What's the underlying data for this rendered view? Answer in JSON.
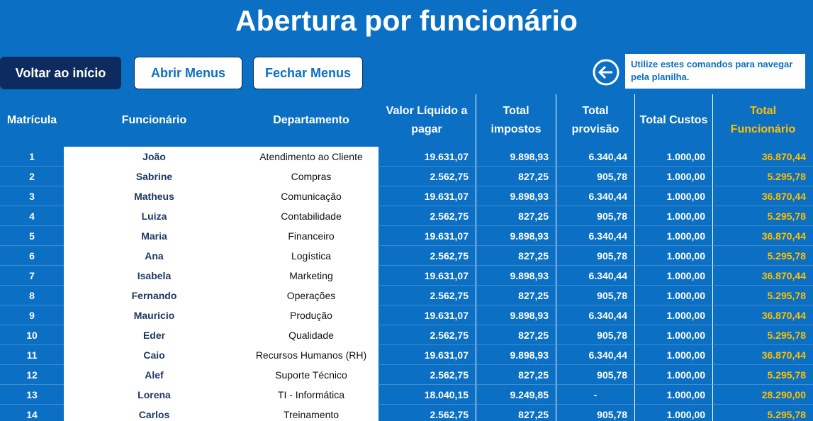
{
  "header": {
    "title": "Abertura por funcionário"
  },
  "buttons": [
    "Voltar ao início",
    "Abrir Menus",
    "Fechar Menus"
  ],
  "note": "Utilize estes comandos para navegar pela planilha.",
  "table": {
    "columns": [
      "Matrícula",
      "Funcionário",
      "Departamento",
      "Valor Líquido a pagar",
      "Total impostos",
      "Total provisão",
      "Total Custos",
      "Total Funcionário"
    ],
    "rows": [
      [
        "1",
        "João",
        "Atendimento ao Cliente",
        "19.631,07",
        "9.898,93",
        "6.340,44",
        "1.000,00",
        "36.870,44"
      ],
      [
        "2",
        "Sabrine",
        "Compras",
        "2.562,75",
        "827,25",
        "905,78",
        "1.000,00",
        "5.295,78"
      ],
      [
        "3",
        "Matheus",
        "Comunicação",
        "19.631,07",
        "9.898,93",
        "6.340,44",
        "1.000,00",
        "36.870,44"
      ],
      [
        "4",
        "Luiza",
        "Contabilidade",
        "2.562,75",
        "827,25",
        "905,78",
        "1.000,00",
        "5.295,78"
      ],
      [
        "5",
        "Maria",
        "Financeiro",
        "19.631,07",
        "9.898,93",
        "6.340,44",
        "1.000,00",
        "36.870,44"
      ],
      [
        "6",
        "Ana",
        "Logística",
        "2.562,75",
        "827,25",
        "905,78",
        "1.000,00",
        "5.295,78"
      ],
      [
        "7",
        "Isabela",
        "Marketing",
        "19.631,07",
        "9.898,93",
        "6.340,44",
        "1.000,00",
        "36.870,44"
      ],
      [
        "8",
        "Fernando",
        "Operações",
        "2.562,75",
        "827,25",
        "905,78",
        "1.000,00",
        "5.295,78"
      ],
      [
        "9",
        "Mauricio",
        "Produção",
        "19.631,07",
        "9.898,93",
        "6.340,44",
        "1.000,00",
        "36.870,44"
      ],
      [
        "10",
        "Eder",
        "Qualidade",
        "2.562,75",
        "827,25",
        "905,78",
        "1.000,00",
        "5.295,78"
      ],
      [
        "11",
        "Caio",
        "Recursos Humanos (RH)",
        "19.631,07",
        "9.898,93",
        "6.340,44",
        "1.000,00",
        "36.870,44"
      ],
      [
        "12",
        "Alef",
        "Suporte Técnico",
        "2.562,75",
        "827,25",
        "905,78",
        "1.000,00",
        "5.295,78"
      ],
      [
        "13",
        "Lorena",
        "TI - Informática",
        "18.040,15",
        "9.249,85",
        "-",
        "1.000,00",
        "28.290,00"
      ],
      [
        "14",
        "Carlos",
        "Treinamento",
        "2.562,75",
        "827,25",
        "905,78",
        "1.000,00",
        "5.295,78"
      ]
    ]
  }
}
